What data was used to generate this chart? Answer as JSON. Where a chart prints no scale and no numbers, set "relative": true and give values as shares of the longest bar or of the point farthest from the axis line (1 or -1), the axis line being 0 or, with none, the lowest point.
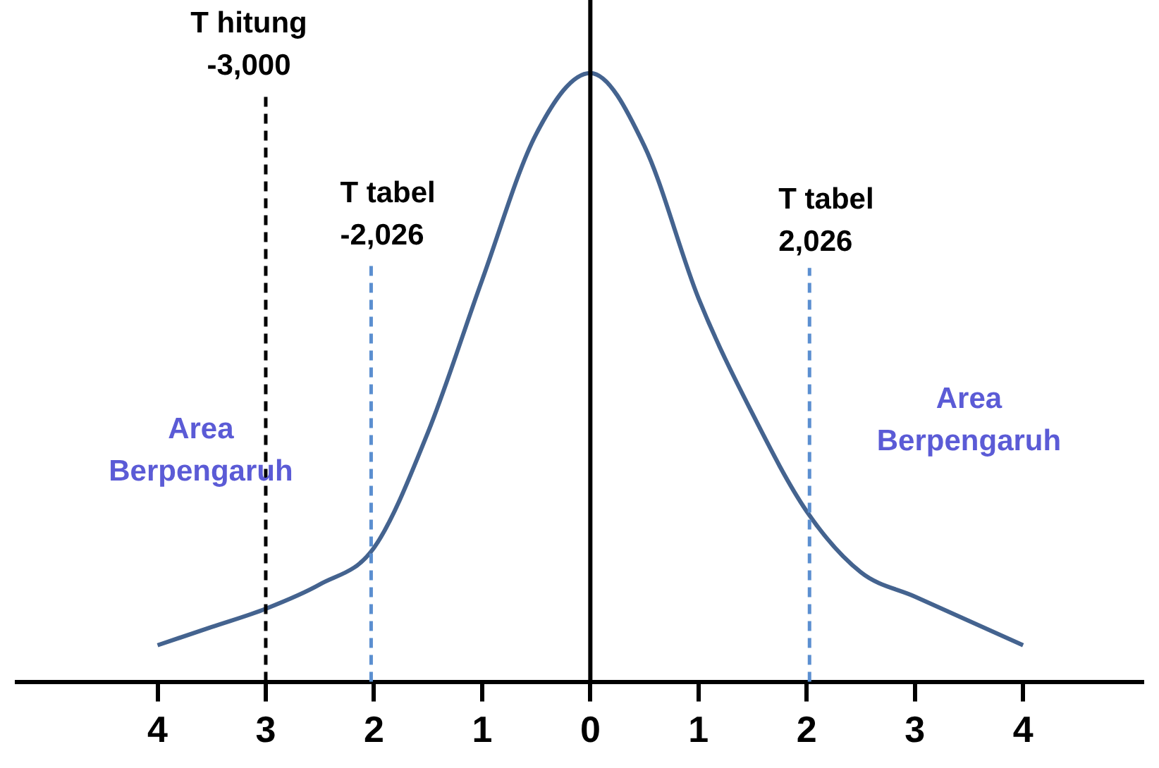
{
  "chart_data": {
    "type": "line",
    "relative": true,
    "x": [
      -4,
      -3.5,
      -3,
      -2.5,
      -2,
      -1.5,
      -1,
      -0.5,
      0,
      0.5,
      1,
      1.5,
      2,
      2.5,
      3,
      3.5,
      4
    ],
    "series": [
      {
        "color": "#44638f",
        "values": [
          0.06,
          0.09,
          0.12,
          0.16,
          0.22,
          0.41,
          0.66,
          0.9,
          1,
          0.88,
          0.63,
          0.44,
          0.28,
          0.18,
          0.14,
          0.1,
          0.06
        ]
      }
    ],
    "xlim": [
      -5.3,
      5.1
    ],
    "xticks": [
      {
        "value": -4,
        "label": "4"
      },
      {
        "value": -3,
        "label": "3"
      },
      {
        "value": -2,
        "label": "2"
      },
      {
        "value": -1,
        "label": "1"
      },
      0,
      1,
      2,
      3,
      4
    ],
    "ref_lines": [
      {
        "axis": "x",
        "value": -3,
        "label": "T hitung\n-3,000",
        "color": "#000000",
        "line_style": "dashed"
      },
      {
        "axis": "x",
        "value": -2.026,
        "label": "T tabel\n-2,026",
        "color": "#5b8fd0",
        "line_style": "dashed"
      },
      {
        "axis": "x",
        "value": 2.026,
        "label": "T tabel\n2,026",
        "color": "#5b8fd0",
        "line_style": "dashed"
      },
      {
        "axis": "x",
        "value": 0,
        "label": null,
        "color": "#000000",
        "line_style": "solid"
      }
    ],
    "annotations": [
      "Area\nBerpengaruh",
      "Area\nBerpengaruh"
    ],
    "grid": false,
    "legend": false,
    "marker": "none",
    "line_style": "solid"
  }
}
